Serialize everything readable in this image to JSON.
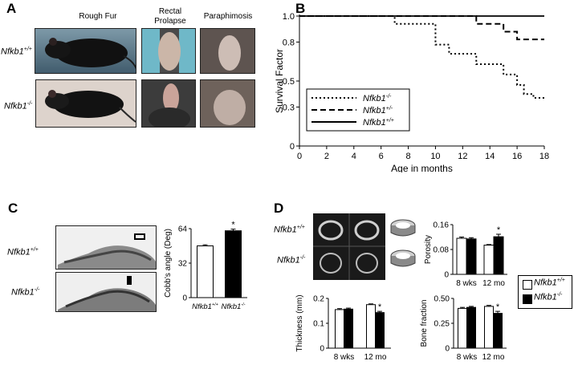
{
  "panel_a": {
    "letter": "A",
    "col_titles": [
      "Rough Fur",
      "Rectal\nProlapse",
      "Paraphimosis"
    ],
    "rows": [
      {
        "base": "Nfkb1",
        "sup": "+/+"
      },
      {
        "base": "Nfkb1",
        "sup": "-/-"
      }
    ]
  },
  "panel_b": {
    "letter": "B"
  },
  "panel_c": {
    "letter": "C",
    "rows": [
      {
        "base": "Nfkb1",
        "sup": "+/+"
      },
      {
        "base": "Nfkb1",
        "sup": "-/-"
      }
    ]
  },
  "panel_d": {
    "letter": "D",
    "rows": [
      {
        "base": "Nfkb1",
        "sup": "+/+"
      },
      {
        "base": "Nfkb1",
        "sup": "-/-"
      }
    ],
    "legend": [
      {
        "base": "Nfkb1",
        "sup": "+/+",
        "color": "#ffffff"
      },
      {
        "base": "Nfkb1",
        "sup": "-/-",
        "color": "#000000"
      }
    ]
  },
  "chart_data": [
    {
      "id": "survival",
      "type": "line",
      "xlabel": "Age in months",
      "ylabel": "Survival Factor",
      "xlim": [
        0,
        18
      ],
      "ylim": [
        0,
        1.0
      ],
      "xticks": [
        0,
        2,
        4,
        6,
        8,
        10,
        12,
        14,
        16,
        18
      ],
      "yticks": [
        0,
        0.3,
        0.5,
        0.8,
        1.0
      ],
      "ytick_labels": [
        "0",
        "0.3",
        "0.5",
        "0.8",
        "1.0"
      ],
      "series": [
        {
          "name": "Nfkb1-/-",
          "base": "Nfkb1",
          "sup": "-/-",
          "style": "dotted",
          "steps": [
            [
              0,
              1.0
            ],
            [
              7,
              0.94
            ],
            [
              10,
              0.78
            ],
            [
              11,
              0.71
            ],
            [
              13,
              0.63
            ],
            [
              15,
              0.55
            ],
            [
              16,
              0.47
            ],
            [
              16.5,
              0.4
            ],
            [
              17.2,
              0.37
            ],
            [
              18,
              0.37
            ]
          ]
        },
        {
          "name": "Nfkb1+/-",
          "base": "Nfkb1",
          "sup": "+/-",
          "style": "dashed",
          "steps": [
            [
              0,
              1.0
            ],
            [
              13,
              0.94
            ],
            [
              15,
              0.88
            ],
            [
              16,
              0.82
            ],
            [
              18,
              0.82
            ]
          ]
        },
        {
          "name": "Nfkb1+/+",
          "base": "Nfkb1",
          "sup": "+/+",
          "style": "solid",
          "steps": [
            [
              0,
              1.0
            ],
            [
              18,
              1.0
            ]
          ]
        }
      ]
    },
    {
      "id": "cobb",
      "type": "bar",
      "ylabel": "Cobb's angle  (Deg)",
      "ylim": [
        0,
        64
      ],
      "yticks": [
        0,
        32,
        64
      ],
      "categories": [
        {
          "base": "Nfkb1",
          "sup": "+/+"
        },
        {
          "base": "Nfkb1",
          "sup": "-/-"
        }
      ],
      "values": [
        48,
        62
      ],
      "errors": [
        1.0,
        1.5
      ],
      "fills": [
        "#ffffff",
        "#000000"
      ],
      "significance": [
        "",
        "*"
      ]
    },
    {
      "id": "porosity",
      "type": "bar",
      "ylabel": "Porosity",
      "ylim": [
        0,
        0.16
      ],
      "yticks": [
        0,
        0.08,
        0.16
      ],
      "ytick_labels": [
        "0",
        "0.08",
        "0.16"
      ],
      "categories": [
        "8 wks",
        "12 mo"
      ],
      "series": [
        {
          "name": "Nfkb1+/+",
          "values": [
            0.116,
            0.094
          ],
          "errors": [
            0.004,
            0.002
          ]
        },
        {
          "name": "Nfkb1-/-",
          "values": [
            0.114,
            0.121
          ],
          "errors": [
            0.004,
            0.008
          ]
        }
      ],
      "significance": [
        "",
        "*"
      ]
    },
    {
      "id": "thickness",
      "type": "bar",
      "ylabel": "Thickness (mm)",
      "ylim": [
        0,
        0.2
      ],
      "yticks": [
        0,
        0.1,
        0.2
      ],
      "ytick_labels": [
        "0",
        "0.1",
        "0.2"
      ],
      "categories": [
        "8 wks",
        "12 mo"
      ],
      "series": [
        {
          "name": "Nfkb1+/+",
          "values": [
            0.155,
            0.175
          ],
          "errors": [
            0.004,
            0.003
          ]
        },
        {
          "name": "Nfkb1-/-",
          "values": [
            0.157,
            0.143
          ],
          "errors": [
            0.004,
            0.005
          ]
        }
      ],
      "significance": [
        "",
        "*"
      ]
    },
    {
      "id": "bonefraction",
      "type": "bar",
      "ylabel": "Bone fraction",
      "ylim": [
        0,
        0.5
      ],
      "yticks": [
        0,
        0.25,
        0.5
      ],
      "ytick_labels": [
        "0",
        "0.25",
        "0.50"
      ],
      "categories": [
        "8 wks",
        "12 mo"
      ],
      "series": [
        {
          "name": "Nfkb1+/+",
          "values": [
            0.4,
            0.42
          ],
          "errors": [
            0.01,
            0.01
          ]
        },
        {
          "name": "Nfkb1-/-",
          "values": [
            0.41,
            0.35
          ],
          "errors": [
            0.01,
            0.02
          ]
        }
      ],
      "significance": [
        "",
        "*"
      ]
    }
  ]
}
